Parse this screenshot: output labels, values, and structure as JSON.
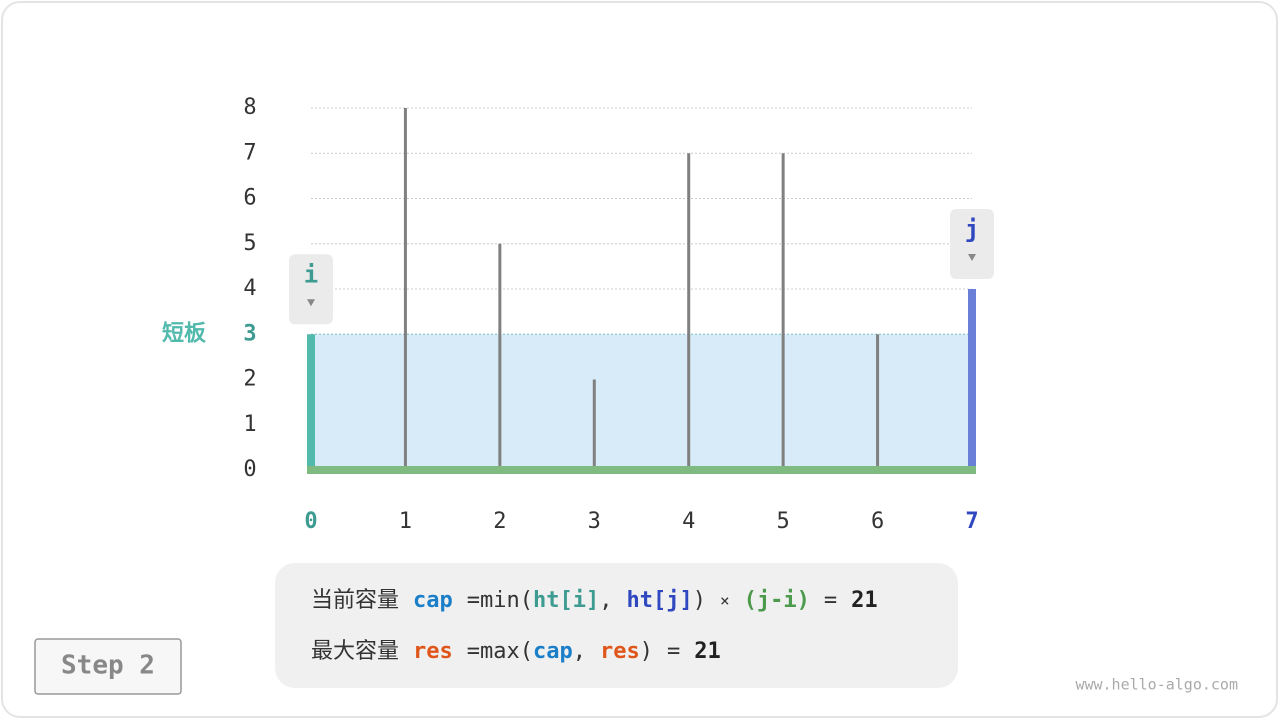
{
  "chart_data": {
    "type": "bar",
    "x": [
      0,
      1,
      2,
      3,
      4,
      5,
      6,
      7
    ],
    "values": [
      3,
      8,
      5,
      2,
      7,
      7,
      3,
      4
    ],
    "xlim": [
      0,
      7
    ],
    "ylim": [
      0,
      8
    ],
    "yticks": [
      0,
      1,
      2,
      3,
      4,
      5,
      6,
      7,
      8
    ],
    "grid": true,
    "color": "#808080",
    "base_color": "#7fbb80",
    "fill_color": "#d8ebf8",
    "pointers": [
      {
        "label": "i",
        "x": 0,
        "color": "#3d9b91",
        "bar_color": "#52b9ad"
      },
      {
        "label": "j",
        "x": 7,
        "color": "#2f48c0",
        "bar_color": "#6a7fd8"
      }
    ],
    "annotation": {
      "text": "短板",
      "value": 3,
      "color": "#52b9ad"
    }
  },
  "formula": {
    "lines": [
      [
        {
          "text": "当前容量"
        },
        {
          "text": "cap",
          "color": "#1a7fc8"
        },
        {
          "text": "="
        },
        {
          "text": "min("
        },
        {
          "text": "ht[i]",
          "color": "#3d9b91"
        },
        {
          "text": ","
        },
        {
          "text": "ht[j]",
          "color": "#2f48c0"
        },
        {
          "text": ")"
        },
        {
          "text": "×"
        },
        {
          "text": "(j-i)",
          "color": "#4c9a4c"
        },
        {
          "text": "="
        },
        {
          "text": "21",
          "color": "#222222"
        }
      ],
      [
        {
          "text": "最大容量"
        },
        {
          "text": "res",
          "color": "#e0561a"
        },
        {
          "text": "="
        },
        {
          "text": "max("
        },
        {
          "text": "cap",
          "color": "#1a7fc8"
        },
        {
          "text": ","
        },
        {
          "text": "res",
          "color": "#e0561a"
        },
        {
          "text": ")"
        },
        {
          "text": "="
        },
        {
          "text": "21",
          "color": "#222222"
        }
      ]
    ]
  },
  "step": "Step 2",
  "watermark": "www.hello-algo.com"
}
